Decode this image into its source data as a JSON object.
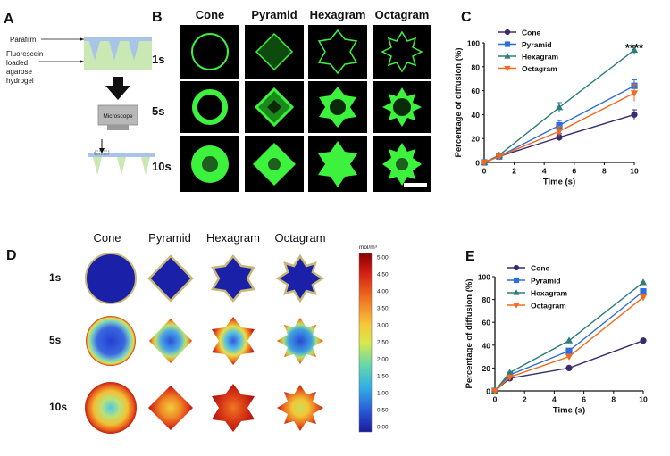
{
  "panels": {
    "A": {
      "letter": "A",
      "parafilm_label": "Parafilm",
      "hydrogel_label_lines": [
        "Fluorescein",
        "loaded",
        "agarose",
        "hydrogel"
      ],
      "microscope_label": "Microscope"
    },
    "B": {
      "letter": "B",
      "columns": [
        "Cone",
        "Pyramid",
        "Hexagram",
        "Octagram"
      ],
      "rows": [
        "1s",
        "5s",
        "10s"
      ]
    },
    "D": {
      "letter": "D",
      "columns": [
        "Cone",
        "Pyramid",
        "Hexagram",
        "Octagram"
      ],
      "rows": [
        "1s",
        "5s",
        "10s"
      ],
      "colorbar_unit": "mol/m³",
      "colorbar_ticks": [
        "5.00",
        "4.50",
        "4.00",
        "3.50",
        "3.00",
        "2.50",
        "2.00",
        "1.50",
        "1.00",
        "0.50",
        "0.00"
      ]
    }
  },
  "colors": {
    "cone": "#3b2a6e",
    "pyramid": "#2f6fdc",
    "hexagram": "#2b7d7b",
    "octagram": "#f26a1b",
    "fluor_green": "#3cf23c",
    "hydrogel": "#c9e8b4",
    "parafilm": "#a9c4e6"
  },
  "chart_data": [
    {
      "panel": "C",
      "letter": "C",
      "type": "line",
      "xlabel": "Time (s)",
      "ylabel": "Percentage of diffusion (%)",
      "xlim": [
        0,
        10
      ],
      "ylim": [
        0,
        100
      ],
      "xticks": [
        0,
        2,
        4,
        6,
        8,
        10
      ],
      "yticks": [
        0,
        20,
        40,
        60,
        80,
        100
      ],
      "x": [
        0,
        1,
        5,
        10
      ],
      "annotation": "****",
      "series": [
        {
          "name": "Cone",
          "marker": "circle",
          "color": "#3b2a6e",
          "values": [
            0,
            5,
            21,
            40
          ],
          "errors": [
            0,
            1,
            3,
            4
          ]
        },
        {
          "name": "Pyramid",
          "marker": "square",
          "color": "#2f6fdc",
          "values": [
            0,
            5,
            31,
            64
          ],
          "errors": [
            0,
            1,
            4,
            5
          ]
        },
        {
          "name": "Hexagram",
          "marker": "triangle-up",
          "color": "#2b7d7b",
          "values": [
            0,
            6,
            46,
            94
          ],
          "errors": [
            0,
            1,
            4,
            4
          ]
        },
        {
          "name": "Octagram",
          "marker": "triangle-down",
          "color": "#f26a1b",
          "values": [
            0,
            5,
            26,
            58
          ],
          "errors": [
            0,
            1,
            4,
            7
          ]
        }
      ]
    },
    {
      "panel": "E",
      "letter": "E",
      "type": "line",
      "xlabel": "Time (s)",
      "ylabel": "Percentage of diffusion (%)",
      "xlim": [
        0,
        10
      ],
      "ylim": [
        0,
        100
      ],
      "xticks": [
        0,
        2,
        4,
        6,
        8,
        10
      ],
      "yticks": [
        0,
        20,
        40,
        60,
        80,
        100
      ],
      "x": [
        0,
        1,
        5,
        10
      ],
      "series": [
        {
          "name": "Cone",
          "marker": "circle",
          "color": "#3b2a6e",
          "values": [
            0,
            11,
            20,
            44
          ]
        },
        {
          "name": "Pyramid",
          "marker": "square",
          "color": "#2f6fdc",
          "values": [
            0,
            14,
            35,
            87
          ]
        },
        {
          "name": "Hexagram",
          "marker": "triangle-up",
          "color": "#2b7d7b",
          "values": [
            0,
            16,
            44,
            95
          ]
        },
        {
          "name": "Octagram",
          "marker": "triangle-down",
          "color": "#f26a1b",
          "values": [
            0,
            12,
            30,
            82
          ]
        }
      ]
    }
  ]
}
